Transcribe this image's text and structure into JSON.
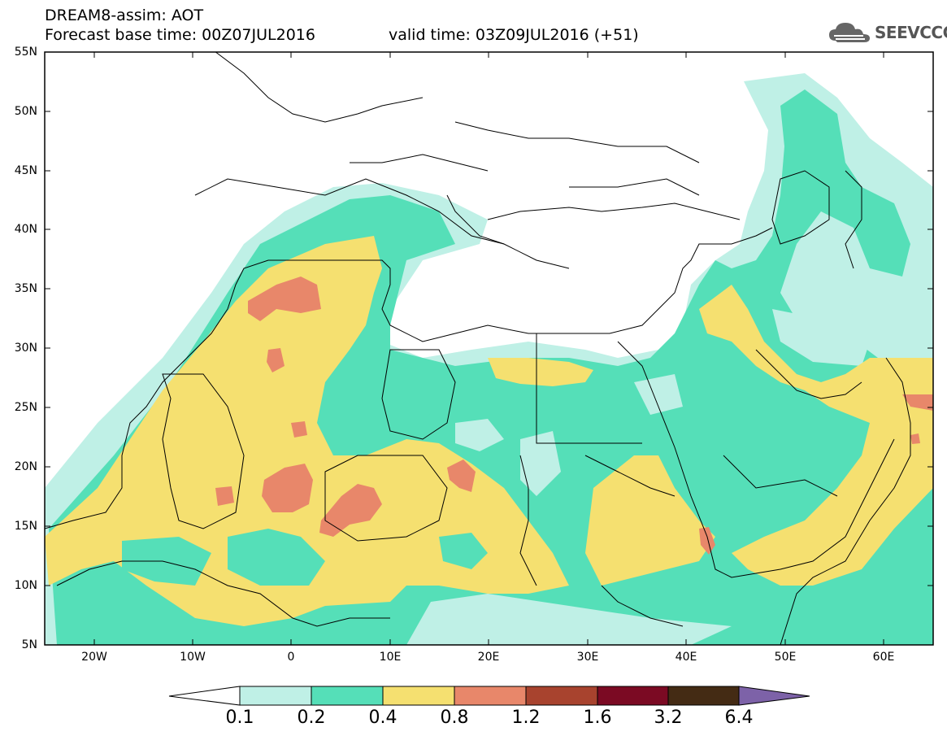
{
  "header": {
    "title": "DREAM8-assim: AOT",
    "base_time": "Forecast base time: 00Z07JUL2016",
    "valid_time": "valid time: 03Z09JUL2016 (+51)",
    "logo_text": "SEEVCCC"
  },
  "map": {
    "lat_labels": [
      "55N",
      "50N",
      "45N",
      "40N",
      "35N",
      "30N",
      "25N",
      "20N",
      "15N",
      "10N",
      "5N"
    ],
    "lon_labels": [
      "20W",
      "10W",
      "0",
      "10E",
      "20E",
      "30E",
      "40E",
      "50E",
      "60E"
    ],
    "lon_range": [
      -25,
      65
    ],
    "lat_range": [
      5,
      55
    ],
    "variable": "AOT"
  },
  "colorbar": {
    "labels": [
      "0.1",
      "0.2",
      "0.4",
      "0.8",
      "1.2",
      "1.6",
      "3.2",
      "6.4"
    ],
    "colors": [
      "#ffffff",
      "#bff0e6",
      "#55dfb8",
      "#f5e070",
      "#e8876a",
      "#a8432e",
      "#7b0a23",
      "#442b14",
      "#7d62a8"
    ]
  }
}
